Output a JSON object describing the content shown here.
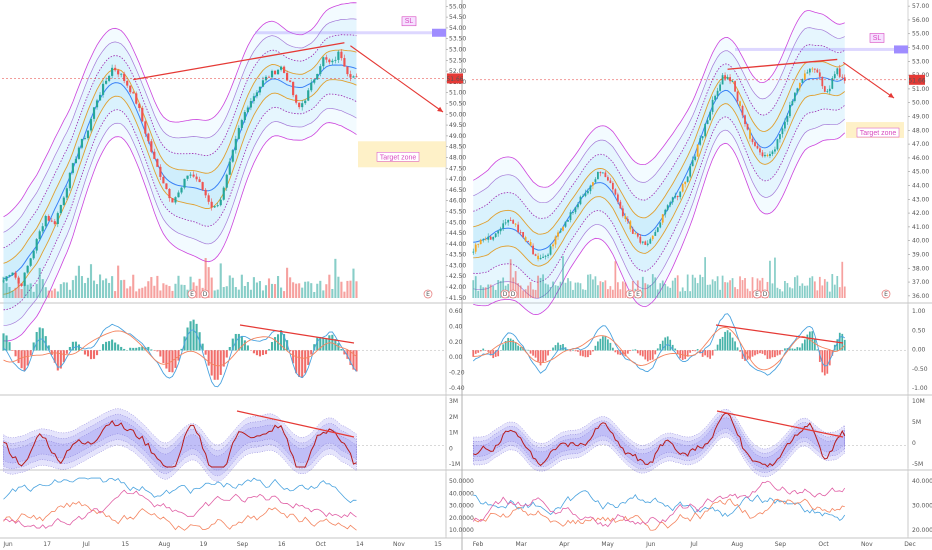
{
  "colors": {
    "up": "#26a69a",
    "down": "#ef5350",
    "orange_candle": "#f5a623",
    "band_fill": "#b3e5fc",
    "band_outer": "#cc44dd",
    "band_inner_line": "#3b82f6",
    "trend": "#e53935",
    "sl_zone": "#9f8cff",
    "target_zone": "#fdebb0",
    "label_text": "#d84ac0",
    "macd_fast": "#4aa3df",
    "macd_slow": "#f4845f",
    "osc_band": "#8a86f0",
    "osc_line": "#b71c1c",
    "dmi_blue": "#4aa3df",
    "dmi_orange": "#f4845f",
    "dmi_pink": "#e05fa5",
    "price_tag": "#e53935"
  },
  "annotations": {
    "sl_label": "SL",
    "target_label": "Target zone",
    "earnings_marker": "E",
    "dividend_marker": "D"
  },
  "chart_data": [
    {
      "panel": "left",
      "type": "candlestick",
      "x_ticks": [
        "Jun",
        "17",
        "Jul",
        "15",
        "Aug",
        "19",
        "Sep",
        "16",
        "Oct",
        "14",
        "Nov",
        "15"
      ],
      "y_ticks": [
        "55.00",
        "54.50",
        "54.00",
        "53.50",
        "53.00",
        "52.50",
        "52.00",
        "51.50",
        "51.00",
        "50.50",
        "50.00",
        "49.50",
        "49.00",
        "48.50",
        "48.00",
        "47.50",
        "47.00",
        "46.50",
        "46.00",
        "45.50",
        "45.00",
        "44.50",
        "44.00",
        "43.50",
        "43.00",
        "42.50",
        "42.00",
        "41.50"
      ],
      "ylim": [
        41.4,
        55.2
      ],
      "last_price": "51.66",
      "close_path": [
        42.3,
        42.8,
        42.0,
        43.1,
        44.2,
        45.3,
        44.9,
        46.0,
        47.3,
        48.5,
        49.2,
        50.6,
        51.4,
        52.2,
        51.8,
        51.2,
        50.4,
        49.0,
        47.8,
        46.9,
        46.0,
        46.4,
        47.3,
        47.0,
        46.3,
        45.6,
        46.2,
        47.8,
        49.3,
        50.4,
        51.0,
        51.6,
        51.9,
        52.2,
        51.5,
        50.2,
        50.8,
        51.7,
        52.6,
        52.3,
        52.9,
        51.9,
        51.66
      ],
      "macd_y_ticks": [
        "0.60",
        "0.40",
        "0.20",
        "0.00",
        "-0.20",
        "-0.40"
      ],
      "osc_y_ticks": [
        "3M",
        "2M",
        "1M",
        "0",
        "-1M"
      ],
      "dmi_y_ticks": [
        "50.0000",
        "40.0000",
        "30.0000",
        "20.0000",
        "10.0000"
      ]
    },
    {
      "panel": "right",
      "type": "candlestick",
      "x_ticks": [
        "Feb",
        "Mar",
        "Apr",
        "May",
        "Jun",
        "Jul",
        "Aug",
        "Sep",
        "Oct",
        "Nov",
        "Dec"
      ],
      "y_ticks": [
        "57.00",
        "56.00",
        "55.00",
        "54.00",
        "53.00",
        "52.00",
        "51.00",
        "50.00",
        "49.00",
        "48.00",
        "47.00",
        "46.00",
        "45.00",
        "44.00",
        "43.00",
        "42.00",
        "41.00",
        "40.00",
        "39.00",
        "38.00",
        "37.00",
        "36.00"
      ],
      "ylim": [
        35.7,
        57.3
      ],
      "last_price": "51.66",
      "close_path": [
        39.4,
        40.3,
        40.0,
        40.7,
        41.5,
        40.9,
        40.2,
        39.1,
        38.6,
        39.5,
        40.8,
        41.6,
        42.7,
        43.5,
        44.6,
        45.0,
        44.1,
        42.3,
        41.2,
        40.1,
        39.8,
        40.7,
        41.8,
        42.9,
        43.6,
        45.1,
        46.8,
        48.6,
        50.7,
        52.0,
        51.6,
        49.3,
        47.5,
        46.6,
        46.0,
        46.9,
        48.4,
        50.3,
        51.8,
        52.7,
        51.9,
        50.6,
        52.4,
        51.66
      ],
      "macd_y_ticks": [
        "1.00",
        "0.50",
        "0.00",
        "-0.50",
        "-1.00"
      ],
      "osc_y_ticks": [
        "10M",
        "5M",
        "0",
        "-5M"
      ],
      "dmi_y_ticks": [
        "40.0000",
        "30.0000",
        "20.0000"
      ]
    }
  ]
}
